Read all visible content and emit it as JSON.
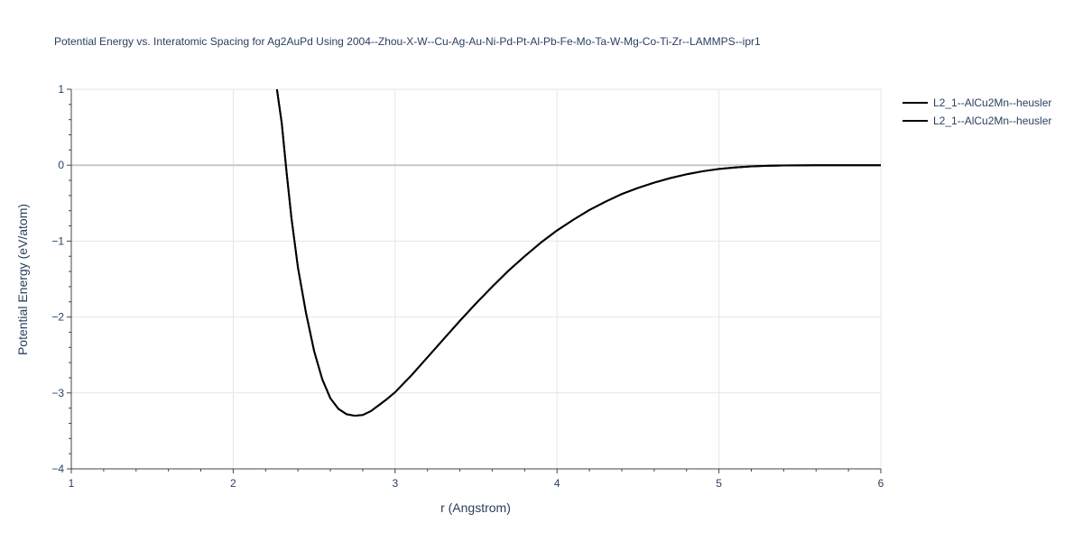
{
  "chart_data": {
    "type": "line",
    "title": "Potential Energy vs. Interatomic Spacing for Ag2AuPd Using 2004--Zhou-X-W--Cu-Ag-Au-Ni-Pd-Pt-Al-Pb-Fe-Mo-Ta-W-Mg-Co-Ti-Zr--LAMMPS--ipr1",
    "xlabel": "r (Angstrom)",
    "ylabel": "Potential Energy (eV/atom)",
    "xlim": [
      1,
      6
    ],
    "ylim": [
      -4,
      1
    ],
    "xticks": [
      "1",
      "2",
      "3",
      "4",
      "5",
      "6"
    ],
    "yticks": [
      "1",
      "0",
      "−1",
      "−2",
      "−3",
      "−4"
    ],
    "grid": true,
    "legend_position": "top-right",
    "series": [
      {
        "name": "L2_1--AlCu2Mn--heusler",
        "color": "#000000",
        "x": [
          2.27,
          2.3,
          2.33,
          2.36,
          2.4,
          2.45,
          2.5,
          2.55,
          2.6,
          2.65,
          2.7,
          2.75,
          2.8,
          2.85,
          2.9,
          2.95,
          3.0,
          3.1,
          3.2,
          3.3,
          3.4,
          3.5,
          3.6,
          3.7,
          3.8,
          3.9,
          4.0,
          4.1,
          4.2,
          4.3,
          4.4,
          4.5,
          4.6,
          4.7,
          4.8,
          4.9,
          5.0,
          5.1,
          5.2,
          5.3,
          5.4,
          5.5,
          5.6,
          5.8,
          6.0
        ],
        "y": [
          1.0,
          0.55,
          -0.1,
          -0.7,
          -1.35,
          -1.95,
          -2.45,
          -2.82,
          -3.07,
          -3.21,
          -3.28,
          -3.3,
          -3.29,
          -3.24,
          -3.16,
          -3.08,
          -2.99,
          -2.77,
          -2.53,
          -2.29,
          -2.05,
          -1.82,
          -1.6,
          -1.39,
          -1.2,
          -1.02,
          -0.86,
          -0.72,
          -0.59,
          -0.48,
          -0.38,
          -0.3,
          -0.23,
          -0.17,
          -0.12,
          -0.08,
          -0.05,
          -0.03,
          -0.015,
          -0.008,
          -0.004,
          -0.002,
          -0.001,
          0.0,
          0.0
        ]
      },
      {
        "name": "L2_1--AlCu2Mn--heusler",
        "color": "#000000",
        "x": [
          2.27,
          2.3,
          2.33,
          2.36,
          2.4,
          2.45,
          2.5,
          2.55,
          2.6,
          2.65,
          2.7,
          2.75,
          2.8,
          2.85,
          2.9,
          2.95,
          3.0,
          3.1,
          3.2,
          3.3,
          3.4,
          3.5,
          3.6,
          3.7,
          3.8,
          3.9,
          4.0,
          4.1,
          4.2,
          4.3,
          4.4,
          4.5,
          4.6,
          4.7,
          4.8,
          4.9,
          5.0,
          5.1,
          5.2,
          5.3,
          5.4,
          5.5,
          5.6,
          5.8,
          6.0
        ],
        "y": [
          1.0,
          0.55,
          -0.1,
          -0.7,
          -1.35,
          -1.95,
          -2.45,
          -2.82,
          -3.07,
          -3.21,
          -3.28,
          -3.3,
          -3.29,
          -3.24,
          -3.16,
          -3.08,
          -2.99,
          -2.77,
          -2.53,
          -2.29,
          -2.05,
          -1.82,
          -1.6,
          -1.39,
          -1.2,
          -1.02,
          -0.86,
          -0.72,
          -0.59,
          -0.48,
          -0.38,
          -0.3,
          -0.23,
          -0.17,
          -0.12,
          -0.08,
          -0.05,
          -0.03,
          -0.015,
          -0.008,
          -0.004,
          -0.002,
          -0.001,
          0.0,
          0.0
        ]
      }
    ]
  }
}
